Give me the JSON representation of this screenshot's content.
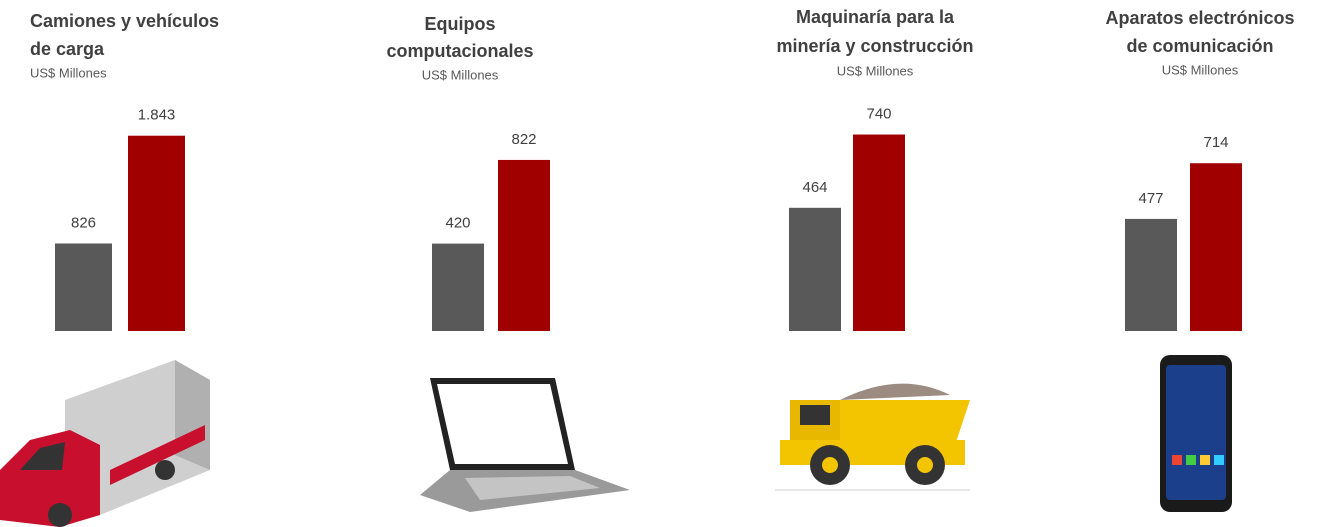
{
  "chart_data": [
    {
      "type": "bar",
      "title": [
        "Camiones y vehículos",
        "de carga"
      ],
      "subtitle": "US$ Millones",
      "categories": [
        null,
        null
      ],
      "values": [
        826,
        1843
      ],
      "value_labels": [
        "826",
        "1.843"
      ],
      "colors": [
        "#595959",
        "#a00000"
      ],
      "ylim": [
        0,
        2180
      ]
    },
    {
      "type": "bar",
      "title": [
        "Equipos",
        "computacionales"
      ],
      "subtitle": "US$ Millones",
      "categories": [
        null,
        null
      ],
      "values": [
        420,
        822
      ],
      "colors": [
        "#595959",
        "#a00000"
      ],
      "ylim": [
        0,
        1110
      ]
    },
    {
      "type": "bar",
      "title": [
        "Maquinaría para la",
        "minería y construcción"
      ],
      "subtitle": "US$ Millones",
      "categories": [
        null,
        null
      ],
      "values": [
        464,
        740
      ],
      "colors": [
        "#595959",
        "#a00000"
      ],
      "ylim": [
        0,
        870
      ]
    },
    {
      "type": "bar",
      "title": [
        "Aparatos electrónicos",
        "de comunicación"
      ],
      "subtitle": "US$ Millones",
      "categories": [
        null,
        null
      ],
      "values": [
        477,
        714
      ],
      "colors": [
        "#595959",
        "#a00000"
      ],
      "ylim": [
        0,
        983
      ]
    }
  ]
}
